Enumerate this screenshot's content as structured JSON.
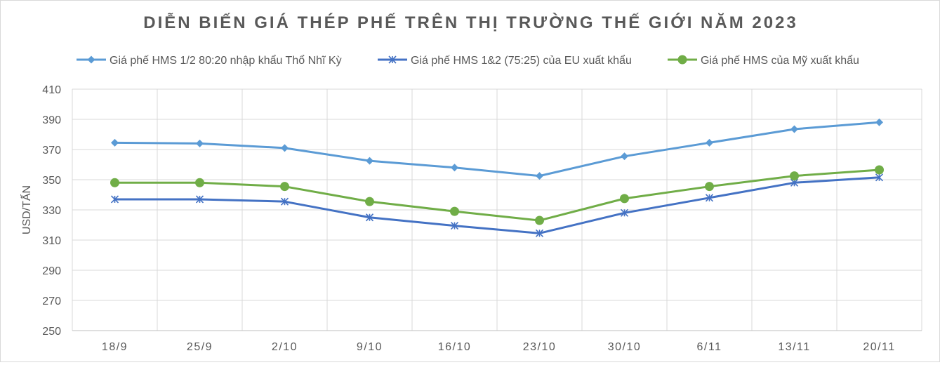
{
  "chart_data": {
    "type": "line",
    "title": "DIỄN BIẾN GIÁ THÉP PHẾ TRÊN THỊ TRƯỜNG THẾ GIỚI NĂM 2023",
    "xlabel": "",
    "ylabel": "USD/TẤN",
    "categories": [
      "18/9",
      "25/9",
      "2/10",
      "9/10",
      "16/10",
      "23/10",
      "30/10",
      "6/11",
      "13/11",
      "20/11"
    ],
    "ylim": [
      250,
      410
    ],
    "yticks": [
      250,
      270,
      290,
      310,
      330,
      350,
      370,
      390,
      410
    ],
    "grid": true,
    "legend_position": "top",
    "series": [
      {
        "name": "Giá phế HMS 1/2 80:20 nhập khẩu Thổ Nhĩ Kỳ",
        "color": "#5b9bd5",
        "marker": "diamond",
        "values": [
          374.5,
          374,
          371,
          362.5,
          358,
          352.5,
          365.5,
          374.5,
          383.5,
          388
        ]
      },
      {
        "name": "Giá phế HMS 1&2 (75:25) của EU xuất khẩu",
        "color": "#4472c4",
        "marker": "asterisk",
        "values": [
          337,
          337,
          335.5,
          325,
          319.5,
          314.5,
          328,
          338,
          348,
          351.5
        ]
      },
      {
        "name": "Giá phế HMS của Mỹ xuất khẩu",
        "color": "#70ad47",
        "marker": "circle",
        "values": [
          348,
          348,
          345.5,
          335.5,
          329,
          323,
          337.5,
          345.5,
          352.5,
          356.5
        ]
      }
    ]
  }
}
